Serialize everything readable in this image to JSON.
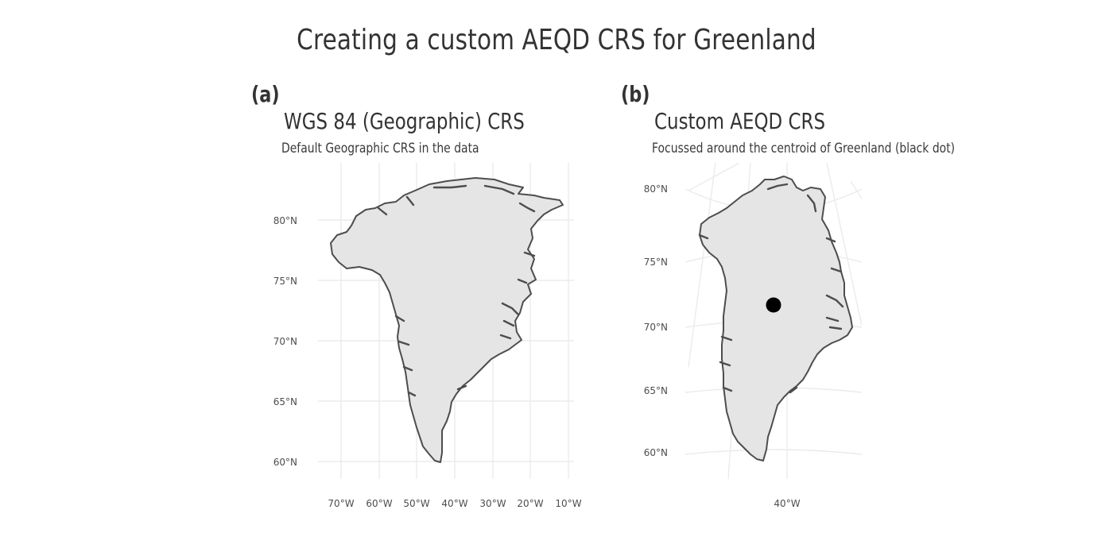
{
  "title": "Creating a custom AEQD CRS for Greenland",
  "panels": [
    {
      "tag": "(a)",
      "title": "WGS 84 (Geographic) CRS",
      "subtitle": "Default Geographic CRS in the data",
      "lat_labels": [
        "80°N",
        "75°N",
        "70°N",
        "65°N",
        "60°N"
      ],
      "lon_labels": [
        "70°W",
        "60°W",
        "50°W",
        "40°W",
        "30°W",
        "20°W",
        "10°W"
      ]
    },
    {
      "tag": "(b)",
      "title": "Custom AEQD CRS",
      "subtitle": "Focussed around the centroid of Greenland (black dot)",
      "lat_labels": [
        "80°N",
        "75°N",
        "70°N",
        "65°N",
        "60°N"
      ],
      "lon_labels": [
        "40°W"
      ]
    }
  ],
  "colors": {
    "land_fill": "#e5e5e5",
    "coastline": "#4d4d4d",
    "graticule": "#ebebeb",
    "centroid": "#000000"
  }
}
